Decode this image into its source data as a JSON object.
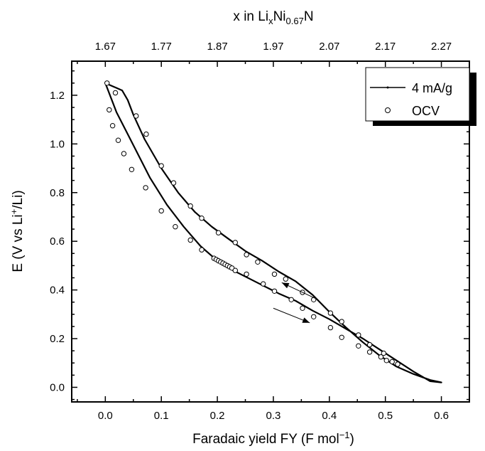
{
  "chart_data": {
    "type": "line",
    "xlabel": "Faradaic yield FY (F mol",
    "xlabel_sup": "−1",
    "xlabel_tail": ")",
    "ylabel_pre": "E (V vs Li",
    "ylabel_sup": "+",
    "ylabel_post": "/Li)",
    "top_xlabel_pre": "x in Li",
    "top_xlabel_sub1": "x",
    "top_xlabel_mid": "Ni",
    "top_xlabel_sub2": "0.67",
    "top_xlabel_post": "N",
    "xlim": [
      -0.06,
      0.65
    ],
    "ylim": [
      -0.06,
      1.34
    ],
    "x_ticks": [
      {
        "value": 0.0,
        "label": "0.0"
      },
      {
        "value": 0.1,
        "label": "0.1"
      },
      {
        "value": 0.2,
        "label": "0.2"
      },
      {
        "value": 0.3,
        "label": "0.3"
      },
      {
        "value": 0.4,
        "label": "0.4"
      },
      {
        "value": 0.5,
        "label": "0.5"
      },
      {
        "value": 0.6,
        "label": "0.6"
      }
    ],
    "y_ticks": [
      {
        "value": 0.0,
        "label": "0.0"
      },
      {
        "value": 0.2,
        "label": "0.2"
      },
      {
        "value": 0.4,
        "label": "0.4"
      },
      {
        "value": 0.6,
        "label": "0.6"
      },
      {
        "value": 0.8,
        "label": "0.8"
      },
      {
        "value": 1.0,
        "label": "1.0"
      },
      {
        "value": 1.2,
        "label": "1.2"
      }
    ],
    "top_ticks": [
      {
        "value": 0.0,
        "label": "1.67"
      },
      {
        "value": 0.1,
        "label": "1.77"
      },
      {
        "value": 0.2,
        "label": "1.87"
      },
      {
        "value": 0.3,
        "label": "1.97"
      },
      {
        "value": 0.4,
        "label": "2.07"
      },
      {
        "value": 0.5,
        "label": "2.17"
      },
      {
        "value": 0.6,
        "label": "2.27"
      }
    ],
    "legend": {
      "position": "top-right",
      "entries": [
        "4 mA/g",
        "OCV"
      ]
    },
    "series": [
      {
        "name": "4 mA/g",
        "style": "line",
        "x": [
          0.0,
          0.01,
          0.02,
          0.03,
          0.04,
          0.05,
          0.07,
          0.1,
          0.13,
          0.16,
          0.19,
          0.22,
          0.25,
          0.28,
          0.31,
          0.34,
          0.37,
          0.4,
          0.43,
          0.46,
          0.49,
          0.52,
          0.55,
          0.58,
          0.6,
          0.58,
          0.55,
          0.52,
          0.49,
          0.46,
          0.43,
          0.4,
          0.37,
          0.34,
          0.31,
          0.28,
          0.25,
          0.22,
          0.2,
          0.17,
          0.14,
          0.11,
          0.08,
          0.06,
          0.04,
          0.02,
          0.01,
          0.0
        ],
        "y": [
          1.25,
          1.24,
          1.23,
          1.22,
          1.18,
          1.12,
          1.02,
          0.9,
          0.8,
          0.72,
          0.66,
          0.61,
          0.56,
          0.52,
          0.475,
          0.435,
          0.38,
          0.31,
          0.245,
          0.185,
          0.13,
          0.085,
          0.055,
          0.03,
          0.02,
          0.025,
          0.065,
          0.11,
          0.155,
          0.2,
          0.24,
          0.28,
          0.315,
          0.355,
          0.385,
          0.42,
          0.455,
          0.49,
          0.52,
          0.58,
          0.66,
          0.75,
          0.86,
          0.95,
          1.04,
          1.13,
          1.19,
          1.25
        ]
      },
      {
        "name": "OCV",
        "style": "open-circle",
        "x": [
          0.003,
          0.018,
          0.055,
          0.073,
          0.1,
          0.122,
          0.152,
          0.172,
          0.202,
          0.232,
          0.252,
          0.272,
          0.302,
          0.322,
          0.352,
          0.372,
          0.402,
          0.422,
          0.452,
          0.472,
          0.497,
          0.007,
          0.013,
          0.023,
          0.033,
          0.047,
          0.072,
          0.1,
          0.125,
          0.152,
          0.172,
          0.194,
          0.198,
          0.202,
          0.206,
          0.21,
          0.214,
          0.218,
          0.222,
          0.226,
          0.232,
          0.252,
          0.282,
          0.302,
          0.332,
          0.352,
          0.372,
          0.402,
          0.422,
          0.452,
          0.472,
          0.492,
          0.502,
          0.512,
          0.522
        ],
        "y": [
          1.25,
          1.21,
          1.115,
          1.04,
          0.91,
          0.84,
          0.745,
          0.695,
          0.635,
          0.595,
          0.545,
          0.515,
          0.465,
          0.445,
          0.39,
          0.36,
          0.305,
          0.27,
          0.215,
          0.175,
          0.14,
          1.14,
          1.075,
          1.015,
          0.96,
          0.895,
          0.82,
          0.725,
          0.66,
          0.605,
          0.565,
          0.53,
          0.525,
          0.52,
          0.515,
          0.51,
          0.505,
          0.5,
          0.495,
          0.49,
          0.48,
          0.465,
          0.425,
          0.395,
          0.36,
          0.325,
          0.29,
          0.245,
          0.205,
          0.17,
          0.145,
          0.125,
          0.11,
          0.105,
          0.095
        ]
      }
    ],
    "annotations": [
      {
        "type": "arrow",
        "from": [
          0.38,
          0.36
        ],
        "to": [
          0.315,
          0.43
        ]
      },
      {
        "type": "arrow",
        "from": [
          0.3,
          0.325
        ],
        "to": [
          0.365,
          0.265
        ]
      }
    ]
  }
}
